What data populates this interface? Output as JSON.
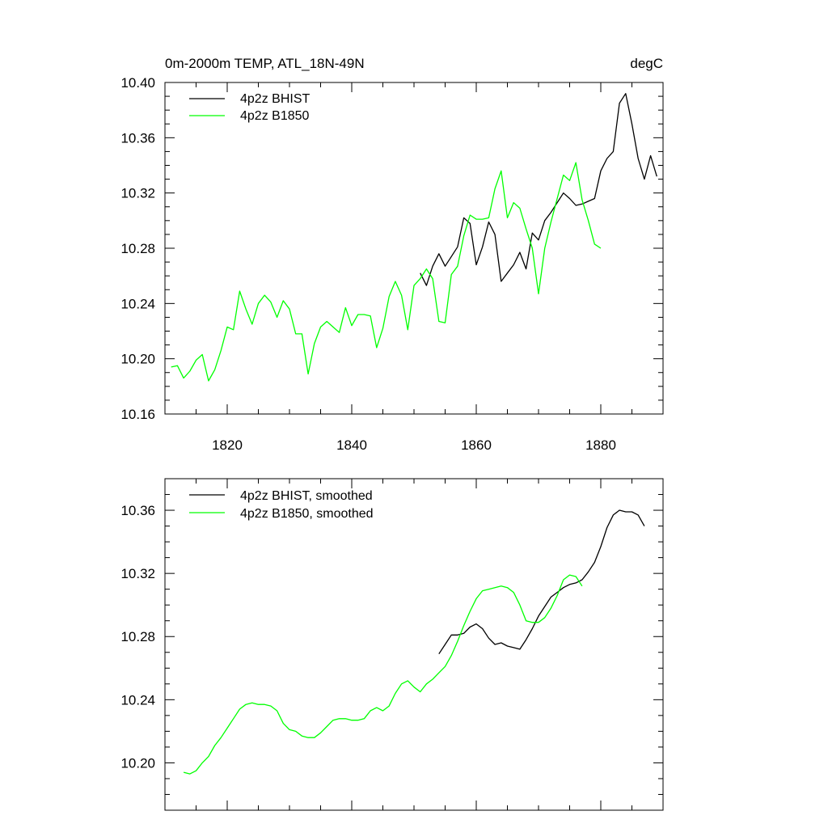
{
  "chart_data": [
    {
      "type": "line",
      "title_left": "0m-2000m TEMP, ATL_18N-49N",
      "title_right": "degC",
      "xlim": [
        1810,
        1890
      ],
      "ylim": [
        10.16,
        10.4
      ],
      "x_ticks": [
        1820,
        1840,
        1860,
        1880
      ],
      "x_tick_labels": [
        "1820",
        "1840",
        "1860",
        "1880"
      ],
      "y_ticks": [
        10.16,
        10.2,
        10.24,
        10.28,
        10.32,
        10.36,
        10.4
      ],
      "y_tick_labels": [
        "10.16",
        "10.20",
        "10.24",
        "10.28",
        "10.32",
        "10.36",
        "10.40"
      ],
      "legend_position": "top-left",
      "series": [
        {
          "name": "4p2z BHIST",
          "color": "#000000",
          "x": [
            1851,
            1852,
            1853,
            1854,
            1855,
            1856,
            1857,
            1858,
            1859,
            1860,
            1861,
            1862,
            1863,
            1864,
            1865,
            1866,
            1867,
            1868,
            1869,
            1870,
            1871,
            1872,
            1873,
            1874,
            1875,
            1876,
            1877,
            1878,
            1879,
            1880,
            1881,
            1882,
            1883,
            1884,
            1885,
            1886,
            1887,
            1888,
            1889
          ],
          "y": [
            10.262,
            10.253,
            10.267,
            10.276,
            10.267,
            10.274,
            10.281,
            10.302,
            10.298,
            10.268,
            10.281,
            10.299,
            10.29,
            10.256,
            10.262,
            10.268,
            10.277,
            10.265,
            10.291,
            10.286,
            10.3,
            10.306,
            10.313,
            10.32,
            10.316,
            10.311,
            10.312,
            10.314,
            10.316,
            10.336,
            10.345,
            10.35,
            10.385,
            10.392,
            10.37,
            10.345,
            10.33,
            10.347,
            10.332
          ]
        },
        {
          "name": "4p2z B1850",
          "color": "#00ff00",
          "x": [
            1811,
            1812,
            1813,
            1814,
            1815,
            1816,
            1817,
            1818,
            1819,
            1820,
            1821,
            1822,
            1823,
            1824,
            1825,
            1826,
            1827,
            1828,
            1829,
            1830,
            1831,
            1832,
            1833,
            1834,
            1835,
            1836,
            1837,
            1838,
            1839,
            1840,
            1841,
            1842,
            1843,
            1844,
            1845,
            1846,
            1847,
            1848,
            1849,
            1850,
            1851,
            1852,
            1853,
            1854,
            1855,
            1856,
            1857,
            1858,
            1859,
            1860,
            1861,
            1862,
            1863,
            1864,
            1865,
            1866,
            1867,
            1868,
            1869,
            1870,
            1871,
            1872,
            1873,
            1874,
            1875,
            1876,
            1877,
            1878,
            1879,
            1880
          ],
          "y": [
            10.194,
            10.195,
            10.186,
            10.191,
            10.199,
            10.203,
            10.184,
            10.192,
            10.206,
            10.223,
            10.221,
            10.249,
            10.236,
            10.225,
            10.24,
            10.246,
            10.241,
            10.23,
            10.242,
            10.236,
            10.218,
            10.218,
            10.189,
            10.211,
            10.223,
            10.227,
            10.223,
            10.219,
            10.237,
            10.224,
            10.232,
            10.232,
            10.231,
            10.208,
            10.222,
            10.245,
            10.256,
            10.246,
            10.221,
            10.253,
            10.258,
            10.265,
            10.258,
            10.227,
            10.226,
            10.261,
            10.267,
            10.289,
            10.304,
            10.301,
            10.301,
            10.302,
            10.323,
            10.336,
            10.302,
            10.313,
            10.309,
            10.294,
            10.28,
            10.247,
            10.28,
            10.299,
            10.316,
            10.333,
            10.329,
            10.342,
            10.315,
            10.3,
            10.283,
            10.28
          ]
        }
      ]
    },
    {
      "type": "line",
      "xlim": [
        1810,
        1890
      ],
      "ylim": [
        10.17,
        10.38
      ],
      "x_ticks": [
        1820,
        1840,
        1860,
        1880
      ],
      "y_ticks": [
        10.2,
        10.24,
        10.28,
        10.32,
        10.36
      ],
      "y_tick_labels": [
        "10.20",
        "10.24",
        "10.28",
        "10.32",
        "10.36"
      ],
      "legend_position": "top-left",
      "series": [
        {
          "name": "4p2z BHIST, smoothed",
          "color": "#000000",
          "x": [
            1854,
            1855,
            1856,
            1857,
            1858,
            1859,
            1860,
            1861,
            1862,
            1863,
            1864,
            1865,
            1866,
            1867,
            1868,
            1869,
            1870,
            1871,
            1872,
            1873,
            1874,
            1875,
            1876,
            1877,
            1878,
            1879,
            1880,
            1881,
            1882,
            1883,
            1884,
            1885,
            1886,
            1887
          ],
          "y": [
            10.269,
            10.275,
            10.281,
            10.281,
            10.282,
            10.286,
            10.288,
            10.285,
            10.279,
            10.275,
            10.276,
            10.274,
            10.273,
            10.272,
            10.278,
            10.285,
            10.293,
            10.299,
            10.305,
            10.308,
            10.311,
            10.313,
            10.314,
            10.316,
            10.321,
            10.327,
            10.337,
            10.349,
            10.357,
            10.36,
            10.359,
            10.359,
            10.357,
            10.35
          ]
        },
        {
          "name": "4p2z B1850, smoothed",
          "color": "#00ff00",
          "x": [
            1813,
            1814,
            1815,
            1816,
            1817,
            1818,
            1819,
            1820,
            1821,
            1822,
            1823,
            1824,
            1825,
            1826,
            1827,
            1828,
            1829,
            1830,
            1831,
            1832,
            1833,
            1834,
            1835,
            1836,
            1837,
            1838,
            1839,
            1840,
            1841,
            1842,
            1843,
            1844,
            1845,
            1846,
            1847,
            1848,
            1849,
            1850,
            1851,
            1852,
            1853,
            1854,
            1855,
            1856,
            1857,
            1858,
            1859,
            1860,
            1861,
            1862,
            1863,
            1864,
            1865,
            1866,
            1867,
            1868,
            1869,
            1870,
            1871,
            1872,
            1873,
            1874,
            1875,
            1876,
            1877
          ],
          "y": [
            10.194,
            10.193,
            10.195,
            10.2,
            10.204,
            10.211,
            10.216,
            10.222,
            10.228,
            10.234,
            10.237,
            10.238,
            10.237,
            10.237,
            10.236,
            10.233,
            10.225,
            10.221,
            10.22,
            10.217,
            10.216,
            10.216,
            10.219,
            10.223,
            10.227,
            10.228,
            10.228,
            10.227,
            10.227,
            10.228,
            10.233,
            10.235,
            10.233,
            10.236,
            10.244,
            10.25,
            10.252,
            10.248,
            10.245,
            10.25,
            10.253,
            10.257,
            10.261,
            10.268,
            10.277,
            10.287,
            10.296,
            10.304,
            10.309,
            10.31,
            10.311,
            10.312,
            10.311,
            10.308,
            10.3,
            10.29,
            10.289,
            10.289,
            10.292,
            10.298,
            10.306,
            10.316,
            10.319,
            10.318,
            10.312
          ]
        }
      ]
    }
  ]
}
